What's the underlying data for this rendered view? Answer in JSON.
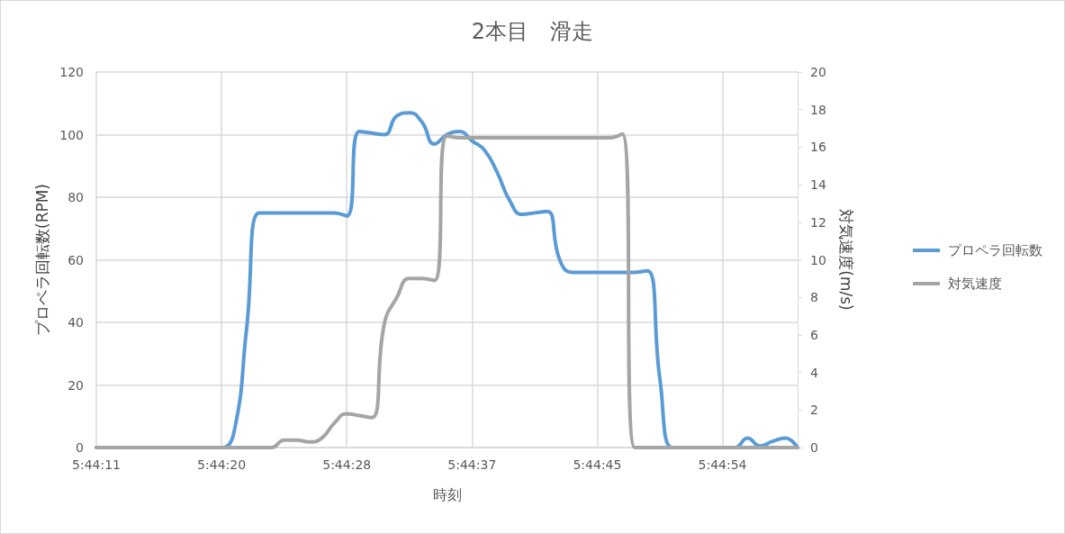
{
  "chart_data": {
    "type": "line",
    "title": "2本目　滑走",
    "xlabel": "時刻",
    "ylabel": "プロペラ回転数(RPM)",
    "y2label": "対気速度(m/s)",
    "categories": [
      "5:44:11",
      null,
      null,
      null,
      null,
      null,
      null,
      null,
      null,
      null,
      "5:44:20",
      null,
      null,
      null,
      null,
      null,
      null,
      null,
      null,
      null,
      "5:44:28",
      null,
      null,
      null,
      null,
      null,
      null,
      null,
      null,
      null,
      "5:44:37",
      null,
      null,
      null,
      null,
      null,
      null,
      null,
      null,
      null,
      "5:44:45",
      null,
      null,
      null,
      null,
      null,
      null,
      null,
      null,
      null,
      "5:44:54",
      null,
      null,
      null,
      null,
      null,
      null
    ],
    "series": [
      {
        "name": "プロペラ回転数",
        "color": "#5b9bd5",
        "values": [
          0,
          0,
          0,
          0,
          0,
          0,
          0,
          0,
          0,
          0,
          0,
          5,
          38,
          75,
          75,
          75,
          75,
          75,
          75,
          75,
          74,
          101,
          100.5,
          100,
          106,
          107,
          104,
          97,
          100,
          101,
          98,
          95,
          88,
          79,
          74.5,
          75,
          75.5,
          60,
          56,
          56,
          56,
          56,
          56,
          56,
          56.5,
          22,
          0,
          0,
          0,
          0,
          0,
          0,
          3,
          0.5,
          2,
          3,
          0
        ]
      },
      {
        "name": "対気速度",
        "color": "#a5a5a5",
        "axis": "y2",
        "values": [
          0,
          0,
          0,
          0,
          0,
          0,
          0,
          0,
          0,
          0,
          0,
          0,
          0,
          0,
          0,
          0.4,
          0.4,
          0.3,
          0.5,
          1.3,
          1.8,
          1.7,
          1.6,
          6.6,
          8,
          9,
          9,
          8.9,
          16.6,
          16.5,
          16.5,
          16.5,
          16.5,
          16.5,
          16.5,
          16.5,
          16.5,
          16.5,
          16.5,
          16.5,
          16.5,
          16.5,
          16.7,
          0,
          0,
          0,
          0,
          0,
          0,
          0,
          0,
          0,
          0,
          0,
          0,
          0,
          0
        ]
      }
    ],
    "ylim": [
      0,
      120
    ],
    "yticks": [
      0,
      20,
      40,
      60,
      80,
      100,
      120
    ],
    "y2lim": [
      0,
      20
    ],
    "y2ticks": [
      0,
      2,
      4,
      6,
      8,
      10,
      12,
      14,
      16,
      18,
      20
    ],
    "grid": true,
    "legend": "right"
  }
}
